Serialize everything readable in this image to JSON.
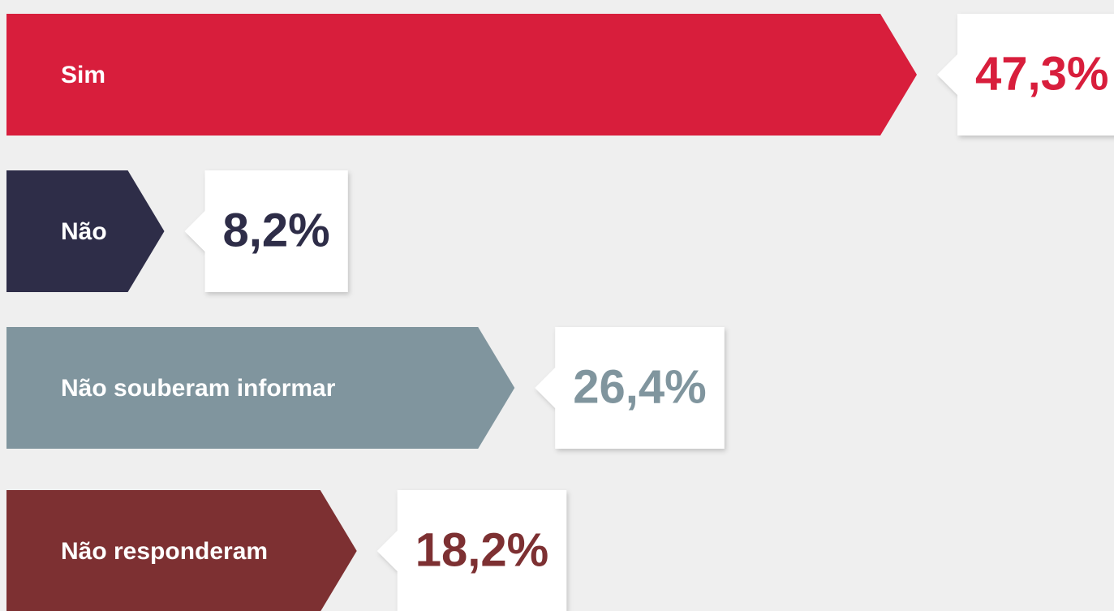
{
  "chart_data": {
    "type": "bar",
    "orientation": "horizontal",
    "categories": [
      "Sim",
      "Não",
      "Não souberam informar",
      "Não responderam"
    ],
    "series": [
      {
        "values": [
          47.3,
          8.2,
          26.4,
          18.2
        ],
        "value_labels": [
          "47,3%",
          "8,2%",
          "26,4%",
          "18,2%"
        ],
        "colors": [
          "#d81e3c",
          "#2e2d48",
          "#80959e",
          "#7d3032"
        ]
      }
    ]
  }
}
